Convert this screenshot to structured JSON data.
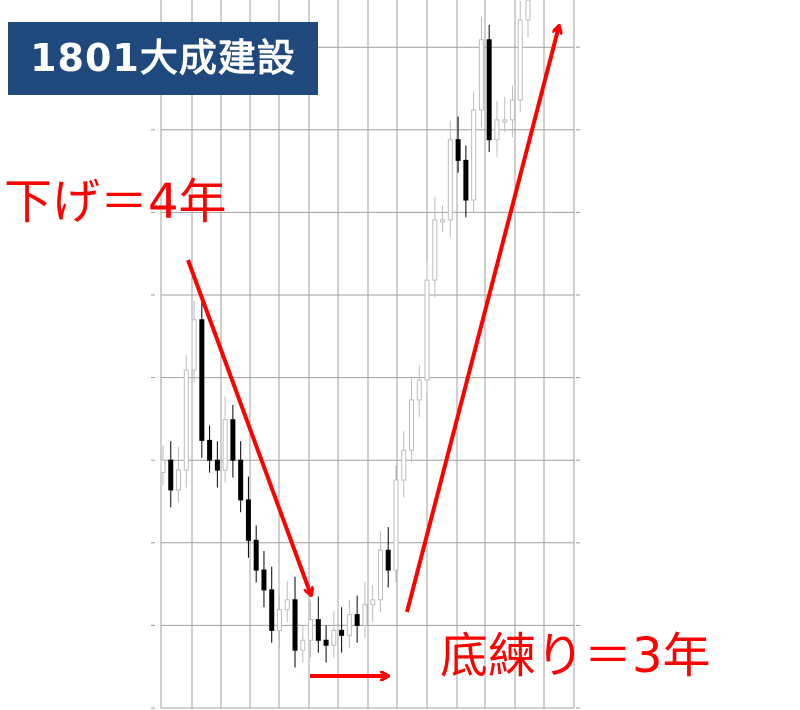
{
  "title": "1801大成建設",
  "annotations": {
    "decline": "下げ＝4年",
    "base": "底練り＝3年"
  },
  "colors": {
    "title_bg": "#1f497d",
    "annotation": "#ff0000",
    "down_candle": "#000000",
    "up_candle": "#bdbdbd",
    "grid": "#a0a0a0"
  },
  "chart_data": {
    "type": "candlestick",
    "title": "1801大成建設",
    "xlabel": "",
    "ylabel": "",
    "grid": true,
    "axis_labels_printed": false,
    "ylim": [
      0,
      8.57
    ],
    "values": [
      3.0,
      2.64,
      2.88,
      4.09,
      4.7,
      3.24,
      3.0,
      2.88,
      3.49,
      3.0,
      2.52,
      2.03,
      1.67,
      1.43,
      0.94,
      1.19,
      1.31,
      0.7,
      0.82,
      1.07,
      0.82,
      0.76,
      0.94,
      0.88,
      1.13,
      1.0,
      1.25,
      1.31,
      1.91,
      1.67,
      2.76,
      3.12,
      3.73,
      3.97,
      5.18,
      5.91,
      5.91,
      6.88,
      6.63,
      6.15,
      7.24,
      8.09,
      6.88,
      7.12,
      7.12,
      7.36,
      8.33,
      8.57
    ],
    "phases": [
      {
        "label": "下げ＝4年",
        "trend": "down"
      },
      {
        "label": "底練り＝3年",
        "trend": "flat"
      },
      {
        "trend": "up"
      }
    ]
  }
}
